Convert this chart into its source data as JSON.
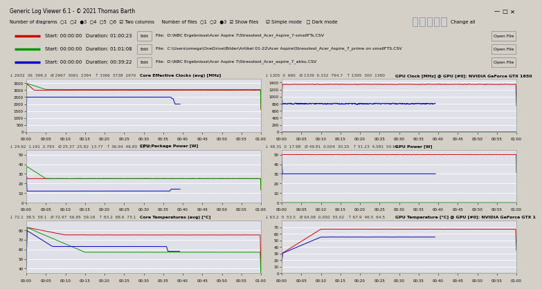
{
  "title_bar": "Generic Log Viewer 6.1 - © 2021 Thomas Barth",
  "bg_color": "#d4d0c8",
  "plot_bg": "#e0e0e8",
  "panel_bg": "#f0f0f0",
  "toolbar_bg": "#f0f0f0",
  "grid_color": "#ffffff",
  "files": [
    {
      "color": "#cc0000",
      "start": "00:00:00",
      "duration": "01:00:23",
      "path": "D:\\NBC Ergebnisse\\Acer Aspire 7\\Stresstest_Acer_Aspire_7-smallFTs.CSV"
    },
    {
      "color": "#009900",
      "start": "00:00:00",
      "duration": "01:01:08",
      "path": "C:\\Users\\omega\\OneDrive\\Bilder\\Artikel 01-22\\Acer Aspire\\Stresstest_Acer_Aspire_7_prime on smallFTS.CSV"
    },
    {
      "color": "#0000cc",
      "start": "00:00:00",
      "duration": "00:39:22",
      "path": "D:\\NBC Ergebnisse\\Acer Aspire 7\\Stresstest_Acer_aspire_7_akku.CSV"
    }
  ],
  "panels": [
    {
      "title": "Core Effective Clocks (avg) [MHz]",
      "ylim": [
        0,
        3800
      ],
      "yticks": [
        0,
        500,
        1000,
        1500,
        2000,
        2500,
        3000,
        3500
      ],
      "stats_r": "↓ 2932",
      "stats_g": "36  399.3",
      "stats_avg": "Ø 2967  3061  2394",
      "stats_up": "↑ 3366  3738  2970",
      "combo": "↓ 2932  36  399.3   Ø 2967  3061  2394   ↑ 3366  3738  2970"
    },
    {
      "title": "GPU Clock [MHz] @ GPU [#0]: NVIDIA GeForce GTX 1650",
      "ylim": [
        0,
        1500
      ],
      "yticks": [
        0,
        200,
        400,
        600,
        800,
        1000,
        1200,
        1400
      ],
      "combo": "↓ 1305  0  660   Ø 1339  0.332  794.7   ↑ 1395  300  1380"
    },
    {
      "title": "CPU Package Power [W]",
      "ylim": [
        0,
        55
      ],
      "yticks": [
        0,
        10,
        20,
        30,
        40,
        50
      ],
      "combo": "↓ 24.92  1.191  2.793   Ø 25.37  25.82  13.77   ↑ 36.94  46.80  28.95"
    },
    {
      "title": "GPU Power [W]",
      "ylim": [
        0,
        55
      ],
      "yticks": [
        0,
        10,
        20,
        30,
        40,
        50
      ],
      "combo": "↓ 48.31  0  17.98   Ø 49.81  0.004  30.25   ↑ 51.23  4.581  50.69"
    },
    {
      "title": "Core Temperatures (avg) [°C]",
      "ylim": [
        35,
        90
      ],
      "yticks": [
        40,
        50,
        60,
        70,
        80
      ],
      "combo": "↓ 72.1  38.5  58.1   Ø 72.97  56.95  59.18   ↑ 83.2  68.6  73.1"
    },
    {
      "title": "GPU Temperature [°C] @ GPU [#0]: NVIDIA GeForce GTX 1",
      "ylim": [
        0,
        80
      ],
      "yticks": [
        0,
        10,
        20,
        30,
        40,
        50,
        60,
        70
      ],
      "combo": "↓ 63.2  0  53.5   Ø 64.08  0.050  55.02   ↑ 67.9  46.5  64.5"
    }
  ],
  "colors": [
    "#cc0000",
    "#009900",
    "#0000cc"
  ],
  "xtick_labels": [
    "00:00",
    "00:05",
    "00:10",
    "00:15",
    "00:20",
    "00:25",
    "00:30",
    "00:35",
    "00:40",
    "00:45",
    "00:50",
    "00:55",
    "01:00"
  ],
  "xtick_vals": [
    0,
    5,
    10,
    15,
    20,
    25,
    30,
    35,
    40,
    45,
    50,
    55,
    60
  ]
}
